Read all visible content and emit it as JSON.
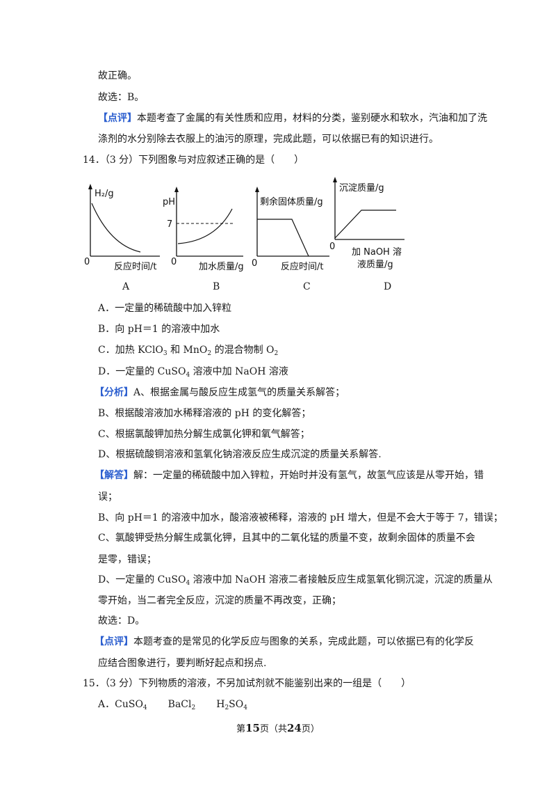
{
  "top": {
    "l1": "故正确。",
    "l2": "故选：B。",
    "l3_tag": "【点评】",
    "l3_text": "本题考查了金属的有关性质和应用，材料的分类，鉴别硬水和软水，汽油和加了洗",
    "l4": "涤剂的水分别除去衣服上的油污的原理，完成此题，可以依据已有的知识进行。"
  },
  "q14": {
    "stem": "14．（3 分）下列图象与对应叙述正确的是（　　）",
    "graphs": [
      {
        "label": "A",
        "y_axis": "H₂/g",
        "x_axis": "反应时间/t",
        "origin": "0"
      },
      {
        "label": "B",
        "y_axis": "pH",
        "x_axis": "加水质量/g",
        "tick": "7",
        "origin": "0"
      },
      {
        "label": "C",
        "y_axis": "剩余固体质量/g",
        "x_axis": "反应时间/t",
        "origin": "0"
      },
      {
        "label": "D",
        "y_axis": "沉淀质量/g",
        "x_axis_1": "加 NaOH 溶",
        "x_axis_2": "液质量/g",
        "origin": "0"
      }
    ],
    "opt_a": "A．一定量的稀硫酸中加入锌粒",
    "opt_b": "B．向 pH＝1 的溶液中加水",
    "opt_c_1": "C．加热 KClO",
    "opt_c_sub1": "3",
    "opt_c_2": " 和 MnO",
    "opt_c_sub2": "2",
    "opt_c_3": " 的混合物制 O",
    "opt_c_sub3": "2",
    "opt_d_1": "D．一定量的 CuSO",
    "opt_d_sub": "4",
    "opt_d_2": " 溶液中加 NaOH 溶液",
    "analysis_tag": "【分析】",
    "analysis_1": "A、根据金属与酸反应生成氢气的质量关系解答；",
    "analysis_2": "B、根据酸溶液加水稀释溶液的 pH 的变化解答；",
    "analysis_3": "C、根据氯酸钾加热分解生成氯化钾和氧气解答；",
    "analysis_4": "D、根据硫酸铜溶液和氢氧化钠溶液反应生成沉淀的质量关系解答.",
    "answer_tag": "【解答】",
    "answer_1": "解：一定量的稀硫酸中加入锌粒，开始时并没有氢气，故氢气应该是从零开始，错",
    "answer_2": "误；",
    "answer_3": "B、向 pH＝1 的溶液中加水，酸溶液被稀释，溶液的 pH 增大，但是不会大于等于 7，错误；",
    "answer_4": "C、氯酸钾受热分解生成氯化钾，且其中的二氧化锰的质量不变，故剩余固体的质量不会",
    "answer_5": "是零，错误；",
    "answer_6a": "D、一定量的 CuSO",
    "answer_6sub": "4",
    "answer_6b": " 溶液中加 NaOH 溶液二者接触反应生成氢氧化铜沉淀，沉淀的质量从",
    "answer_7": "零开始，当二者完全反应，沉淀的质量不再改变，正确；",
    "answer_8": "故选：D。",
    "review_tag": "【点评】",
    "review_1": "本题考查的是常见的化学反应与图象的关系，完成此题，可以依据已有的化学反",
    "review_2": "应结合图象进行，要判断好起点和拐点."
  },
  "q15": {
    "stem": "15．（3 分）下列物质的溶液，不另加试剂就不能鉴别出来的一组是（　　）",
    "opt_a_label": "A．",
    "opt_a_1": "CuSO",
    "opt_a_1sub": "4",
    "opt_a_2": "BaCl",
    "opt_a_2sub": "2",
    "opt_a_3a": "H",
    "opt_a_3sub1": "2",
    "opt_a_3b": "SO",
    "opt_a_3sub2": "4"
  },
  "footer": {
    "pre": "第",
    "page": "15",
    "mid": "页（共",
    "total": "24",
    "post": "页）"
  }
}
